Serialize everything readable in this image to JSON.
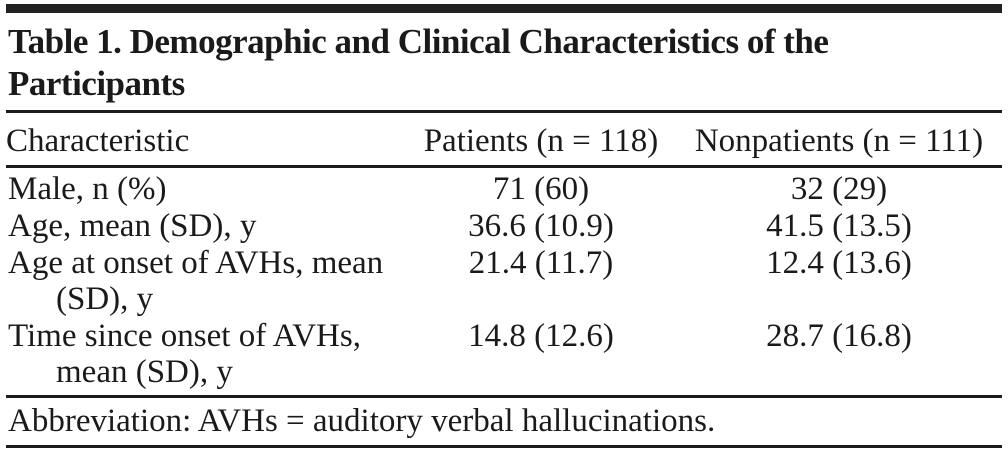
{
  "table": {
    "title": "Table 1. Demographic and Clinical Characteristics of the Participants",
    "columns": [
      "Characteristic",
      "Patients (n = 118)",
      "Nonpatients (n = 111)"
    ],
    "rows": [
      {
        "characteristic": "Male, n (%)",
        "patients": "71 (60)",
        "nonpatients": "32 (29)"
      },
      {
        "characteristic": "Age, mean (SD), y",
        "patients": "36.6 (10.9)",
        "nonpatients": "41.5 (13.5)"
      },
      {
        "characteristic": "Age at onset of AVHs, mean (SD), y",
        "patients": "21.4 (11.7)",
        "nonpatients": "12.4 (13.6)"
      },
      {
        "characteristic": "Time since onset of AVHs, mean (SD), y",
        "patients": "14.8 (12.6)",
        "nonpatients": "28.7 (16.8)"
      }
    ],
    "footnote": "Abbreviation: AVHs = auditory verbal hallucinations."
  },
  "colors": {
    "text": "#1a1a1a",
    "rule": "#1c1c1c",
    "top_bar": "#212121",
    "background": "#ffffff"
  }
}
